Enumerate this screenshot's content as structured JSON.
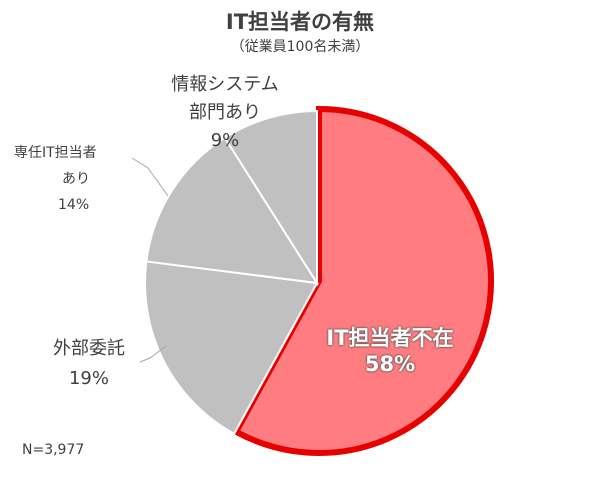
{
  "chart_data": {
    "type": "pie",
    "title": "IT担当者の有無",
    "subtitle": "（従業員100名未満）",
    "note": "N=3,977",
    "slices": [
      {
        "label": "IT担当者不在",
        "value": 58,
        "value_label": "58%",
        "color": "#FF7C80",
        "highlight": "#E60000"
      },
      {
        "label": "外部委託",
        "value": 19,
        "value_label": "19%",
        "color": "#C0C0C0"
      },
      {
        "label_lines": [
          "専任IT担当者",
          "あり"
        ],
        "value": 14,
        "value_label": "14%",
        "color": "#C0C0C0"
      },
      {
        "label_lines": [
          "情報システム",
          "部門あり"
        ],
        "value": 9,
        "value_label": "9%",
        "color": "#C0C0C0"
      }
    ]
  }
}
